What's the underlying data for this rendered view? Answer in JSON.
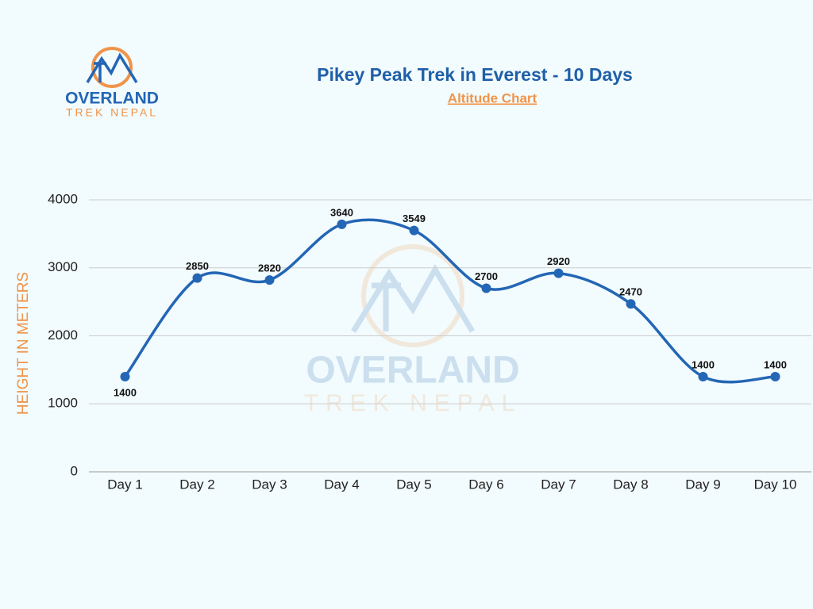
{
  "brand": {
    "name": "OVERLAND",
    "tagline": "TREK NEPAL"
  },
  "chart_data": {
    "type": "line",
    "title": "Pikey Peak Trek in Everest - 10 Days",
    "subtitle": "Altitude Chart",
    "y_label": "HEIGHT IN METERS",
    "categories": [
      "Day 1",
      "Day 2",
      "Day 3",
      "Day 4",
      "Day 5",
      "Day 6",
      "Day 7",
      "Day 8",
      "Day 9",
      "Day 10"
    ],
    "values": [
      1400,
      2850,
      2820,
      3640,
      3549,
      2700,
      2920,
      2470,
      1400,
      1400
    ],
    "color": "#2366b5",
    "ylim": [
      0,
      4000
    ],
    "yticks": [
      0,
      1000,
      2000,
      3000,
      4000
    ],
    "grid": true,
    "smooth": true
  }
}
